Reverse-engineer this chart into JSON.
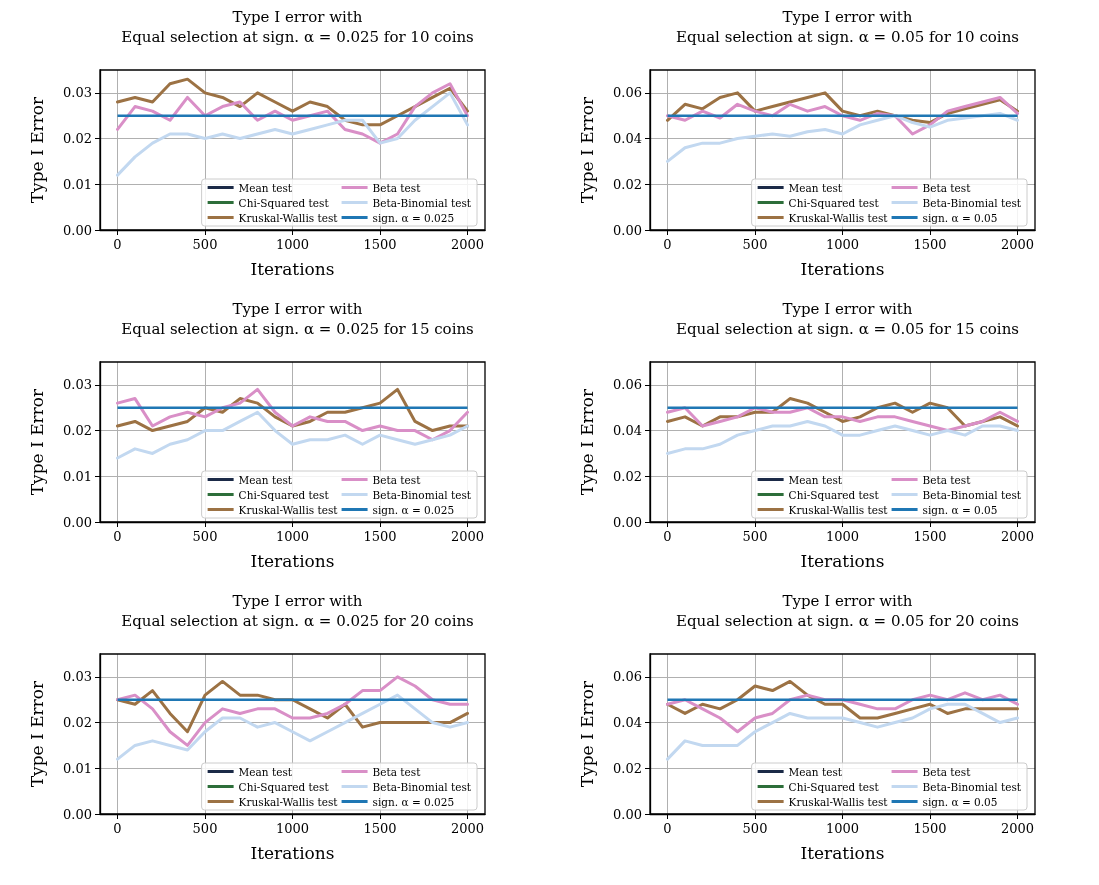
{
  "chart_data": [
    {
      "type": "line",
      "title": "Type I error with\nEqual selection at sign. α = 0.025 for 10 coins",
      "xlabel": "Iterations",
      "ylabel": "Type I Error",
      "xlim": [
        -100,
        2100
      ],
      "xticks": [
        0,
        500,
        1000,
        1500,
        2000
      ],
      "ylim": [
        0,
        0.035
      ],
      "yticks": [
        {
          "value": 0,
          "label": "0.00"
        },
        {
          "value": 0.01,
          "label": "0.01"
        },
        {
          "value": 0.02,
          "label": "0.02"
        },
        {
          "value": 0.03,
          "label": "0.03"
        }
      ],
      "grid": true,
      "legend": "bottom",
      "line_style": "solid",
      "marker": "none",
      "x": [
        0,
        100,
        200,
        300,
        400,
        500,
        600,
        700,
        800,
        900,
        1000,
        1100,
        1200,
        1300,
        1400,
        1500,
        1600,
        1700,
        1800,
        1900,
        2000
      ],
      "series": [
        {
          "name": "Mean test",
          "color": "#1b2a47",
          "values": [
            null,
            null,
            null,
            null,
            null,
            null,
            null,
            null,
            null,
            null,
            null,
            null,
            null,
            null,
            null,
            null,
            null,
            null,
            null,
            null,
            null
          ]
        },
        {
          "name": "Chi-Squared test",
          "color": "#2d6e3a",
          "values": [
            null,
            null,
            null,
            null,
            null,
            null,
            null,
            null,
            null,
            null,
            null,
            null,
            null,
            null,
            null,
            null,
            null,
            null,
            null,
            null,
            null
          ]
        },
        {
          "name": "Kruskal-Wallis test",
          "color": "#9c7244",
          "values": [
            0.028,
            0.029,
            0.028,
            0.032,
            0.033,
            0.03,
            0.029,
            0.027,
            0.03,
            0.028,
            0.026,
            0.028,
            0.027,
            0.024,
            0.023,
            0.023,
            0.025,
            0.027,
            0.029,
            0.031,
            0.026
          ]
        },
        {
          "name": "Beta test",
          "color": "#d98fc7",
          "values": [
            0.022,
            0.027,
            0.026,
            0.024,
            0.029,
            0.025,
            0.027,
            0.028,
            0.024,
            0.026,
            0.024,
            0.025,
            0.026,
            0.022,
            0.021,
            0.019,
            0.021,
            0.027,
            0.03,
            0.032,
            0.025
          ]
        },
        {
          "name": "Beta-Binomial test",
          "color": "#c2d8f0",
          "values": [
            0.012,
            0.016,
            0.019,
            0.021,
            0.021,
            0.02,
            0.021,
            0.02,
            0.021,
            0.022,
            0.021,
            0.022,
            0.023,
            0.024,
            0.024,
            0.019,
            0.02,
            0.024,
            0.027,
            0.03,
            0.023
          ]
        }
      ],
      "ref_lines": [
        {
          "axis": "y",
          "value": 0.025,
          "label": "sign. α = 0.025",
          "color": "#1f77b4"
        }
      ]
    },
    {
      "type": "line",
      "title": "Type I error with\nEqual selection at sign. α = 0.05 for 10 coins",
      "xlabel": "Iterations",
      "ylabel": "Type I Error",
      "xlim": [
        -100,
        2100
      ],
      "xticks": [
        0,
        500,
        1000,
        1500,
        2000
      ],
      "ylim": [
        0,
        0.07
      ],
      "yticks": [
        {
          "value": 0,
          "label": "0.00"
        },
        {
          "value": 0.02,
          "label": "0.02"
        },
        {
          "value": 0.04,
          "label": "0.04"
        },
        {
          "value": 0.06,
          "label": "0.06"
        }
      ],
      "grid": true,
      "legend": "bottom",
      "line_style": "solid",
      "marker": "none",
      "x": [
        0,
        100,
        200,
        300,
        400,
        500,
        600,
        700,
        800,
        900,
        1000,
        1100,
        1200,
        1300,
        1400,
        1500,
        1600,
        1700,
        1800,
        1900,
        2000
      ],
      "series": [
        {
          "name": "Mean test",
          "color": "#1b2a47",
          "values": [
            null,
            null,
            null,
            null,
            null,
            null,
            null,
            null,
            null,
            null,
            null,
            null,
            null,
            null,
            null,
            null,
            null,
            null,
            null,
            null,
            null
          ]
        },
        {
          "name": "Chi-Squared test",
          "color": "#2d6e3a",
          "values": [
            null,
            null,
            null,
            null,
            null,
            null,
            null,
            null,
            null,
            null,
            null,
            null,
            null,
            null,
            null,
            null,
            null,
            null,
            null,
            null,
            null
          ]
        },
        {
          "name": "Kruskal-Wallis test",
          "color": "#9c7244",
          "values": [
            0.048,
            0.055,
            0.053,
            0.058,
            0.06,
            0.052,
            0.054,
            0.056,
            0.058,
            0.06,
            0.052,
            0.05,
            0.052,
            0.05,
            0.048,
            0.047,
            0.051,
            0.053,
            0.055,
            0.057,
            0.052
          ]
        },
        {
          "name": "Beta test",
          "color": "#d98fc7",
          "values": [
            0.05,
            0.048,
            0.052,
            0.049,
            0.055,
            0.052,
            0.05,
            0.055,
            0.052,
            0.054,
            0.05,
            0.048,
            0.051,
            0.05,
            0.042,
            0.046,
            0.052,
            0.054,
            0.056,
            0.058,
            0.051
          ]
        },
        {
          "name": "Beta-Binomial test",
          "color": "#c2d8f0",
          "values": [
            0.03,
            0.036,
            0.038,
            0.038,
            0.04,
            0.041,
            0.042,
            0.041,
            0.043,
            0.044,
            0.042,
            0.046,
            0.048,
            0.05,
            0.047,
            0.045,
            0.048,
            0.049,
            0.05,
            0.051,
            0.048
          ]
        }
      ],
      "ref_lines": [
        {
          "axis": "y",
          "value": 0.05,
          "label": "sign. α = 0.05",
          "color": "#1f77b4"
        }
      ]
    },
    {
      "type": "line",
      "title": "Type I error with\nEqual selection at sign. α = 0.025 for 15 coins",
      "xlabel": "Iterations",
      "ylabel": "Type I Error",
      "xlim": [
        -100,
        2100
      ],
      "xticks": [
        0,
        500,
        1000,
        1500,
        2000
      ],
      "ylim": [
        0,
        0.035
      ],
      "yticks": [
        {
          "value": 0,
          "label": "0.00"
        },
        {
          "value": 0.01,
          "label": "0.01"
        },
        {
          "value": 0.02,
          "label": "0.02"
        },
        {
          "value": 0.03,
          "label": "0.03"
        }
      ],
      "grid": true,
      "legend": "bottom",
      "line_style": "solid",
      "marker": "none",
      "x": [
        0,
        100,
        200,
        300,
        400,
        500,
        600,
        700,
        800,
        900,
        1000,
        1100,
        1200,
        1300,
        1400,
        1500,
        1600,
        1700,
        1800,
        1900,
        2000
      ],
      "series": [
        {
          "name": "Mean test",
          "color": "#1b2a47",
          "values": [
            null,
            null,
            null,
            null,
            null,
            null,
            null,
            null,
            null,
            null,
            null,
            null,
            null,
            null,
            null,
            null,
            null,
            null,
            null,
            null,
            null
          ]
        },
        {
          "name": "Chi-Squared test",
          "color": "#2d6e3a",
          "values": [
            null,
            null,
            null,
            null,
            null,
            null,
            null,
            null,
            null,
            null,
            null,
            null,
            null,
            null,
            null,
            null,
            null,
            null,
            null,
            null,
            null
          ]
        },
        {
          "name": "Kruskal-Wallis test",
          "color": "#9c7244",
          "values": [
            0.021,
            0.022,
            0.02,
            0.021,
            0.022,
            0.025,
            0.024,
            0.027,
            0.026,
            0.023,
            0.021,
            0.022,
            0.024,
            0.024,
            0.025,
            0.026,
            0.029,
            0.022,
            0.02,
            0.021,
            0.021
          ]
        },
        {
          "name": "Beta test",
          "color": "#d98fc7",
          "values": [
            0.026,
            0.027,
            0.021,
            0.023,
            0.024,
            0.023,
            0.025,
            0.026,
            0.029,
            0.024,
            0.021,
            0.023,
            0.022,
            0.022,
            0.02,
            0.021,
            0.02,
            0.02,
            0.018,
            0.02,
            0.024
          ]
        },
        {
          "name": "Beta-Binomial test",
          "color": "#c2d8f0",
          "values": [
            0.014,
            0.016,
            0.015,
            0.017,
            0.018,
            0.02,
            0.02,
            0.022,
            0.024,
            0.02,
            0.017,
            0.018,
            0.018,
            0.019,
            0.017,
            0.019,
            0.018,
            0.017,
            0.018,
            0.019,
            0.021
          ]
        }
      ],
      "ref_lines": [
        {
          "axis": "y",
          "value": 0.025,
          "label": "sign. α = 0.025",
          "color": "#1f77b4"
        }
      ]
    },
    {
      "type": "line",
      "title": "Type I error with\nEqual selection at sign. α = 0.05 for 15 coins",
      "xlabel": "Iterations",
      "ylabel": "Type I Error",
      "xlim": [
        -100,
        2100
      ],
      "xticks": [
        0,
        500,
        1000,
        1500,
        2000
      ],
      "ylim": [
        0,
        0.07
      ],
      "yticks": [
        {
          "value": 0,
          "label": "0.00"
        },
        {
          "value": 0.02,
          "label": "0.02"
        },
        {
          "value": 0.04,
          "label": "0.04"
        },
        {
          "value": 0.06,
          "label": "0.06"
        }
      ],
      "grid": true,
      "legend": "bottom",
      "line_style": "solid",
      "marker": "none",
      "x": [
        0,
        100,
        200,
        300,
        400,
        500,
        600,
        700,
        800,
        900,
        1000,
        1100,
        1200,
        1300,
        1400,
        1500,
        1600,
        1700,
        1800,
        1900,
        2000
      ],
      "series": [
        {
          "name": "Mean test",
          "color": "#1b2a47",
          "values": [
            null,
            null,
            null,
            null,
            null,
            null,
            null,
            null,
            null,
            null,
            null,
            null,
            null,
            null,
            null,
            null,
            null,
            null,
            null,
            null,
            null
          ]
        },
        {
          "name": "Chi-Squared test",
          "color": "#2d6e3a",
          "values": [
            null,
            null,
            null,
            null,
            null,
            null,
            null,
            null,
            null,
            null,
            null,
            null,
            null,
            null,
            null,
            null,
            null,
            null,
            null,
            null,
            null
          ]
        },
        {
          "name": "Kruskal-Wallis test",
          "color": "#9c7244",
          "values": [
            0.044,
            0.046,
            0.042,
            0.046,
            0.046,
            0.048,
            0.048,
            0.054,
            0.052,
            0.048,
            0.044,
            0.046,
            0.05,
            0.052,
            0.048,
            0.052,
            0.05,
            0.042,
            0.044,
            0.046,
            0.042
          ]
        },
        {
          "name": "Beta test",
          "color": "#d98fc7",
          "values": [
            0.048,
            0.05,
            0.042,
            0.044,
            0.046,
            0.05,
            0.048,
            0.048,
            0.05,
            0.046,
            0.046,
            0.044,
            0.046,
            0.046,
            0.044,
            0.042,
            0.04,
            0.042,
            0.044,
            0.048,
            0.044
          ]
        },
        {
          "name": "Beta-Binomial test",
          "color": "#c2d8f0",
          "values": [
            0.03,
            0.032,
            0.032,
            0.034,
            0.038,
            0.04,
            0.042,
            0.042,
            0.044,
            0.042,
            0.038,
            0.038,
            0.04,
            0.042,
            0.04,
            0.038,
            0.04,
            0.038,
            0.042,
            0.042,
            0.04
          ]
        }
      ],
      "ref_lines": [
        {
          "axis": "y",
          "value": 0.05,
          "label": "sign. α = 0.05",
          "color": "#1f77b4"
        }
      ]
    },
    {
      "type": "line",
      "title": "Type I error with\nEqual selection at sign. α = 0.025 for 20 coins",
      "xlabel": "Iterations",
      "ylabel": "Type I Error",
      "xlim": [
        -100,
        2100
      ],
      "xticks": [
        0,
        500,
        1000,
        1500,
        2000
      ],
      "ylim": [
        0,
        0.035
      ],
      "yticks": [
        {
          "value": 0,
          "label": "0.00"
        },
        {
          "value": 0.01,
          "label": "0.01"
        },
        {
          "value": 0.02,
          "label": "0.02"
        },
        {
          "value": 0.03,
          "label": "0.03"
        }
      ],
      "grid": true,
      "legend": "bottom",
      "line_style": "solid",
      "marker": "none",
      "x": [
        0,
        100,
        200,
        300,
        400,
        500,
        600,
        700,
        800,
        900,
        1000,
        1100,
        1200,
        1300,
        1400,
        1500,
        1600,
        1700,
        1800,
        1900,
        2000
      ],
      "series": [
        {
          "name": "Mean test",
          "color": "#1b2a47",
          "values": [
            null,
            null,
            null,
            null,
            null,
            null,
            null,
            null,
            null,
            null,
            null,
            null,
            null,
            null,
            null,
            null,
            null,
            null,
            null,
            null,
            null
          ]
        },
        {
          "name": "Chi-Squared test",
          "color": "#2d6e3a",
          "values": [
            null,
            null,
            null,
            null,
            null,
            null,
            null,
            null,
            null,
            null,
            null,
            null,
            null,
            null,
            null,
            null,
            null,
            null,
            null,
            null,
            null
          ]
        },
        {
          "name": "Kruskal-Wallis test",
          "color": "#9c7244",
          "values": [
            0.025,
            0.024,
            0.027,
            0.022,
            0.018,
            0.026,
            0.029,
            0.026,
            0.026,
            0.025,
            0.025,
            0.023,
            0.021,
            0.024,
            0.019,
            0.02,
            0.02,
            0.02,
            0.02,
            0.02,
            0.022
          ]
        },
        {
          "name": "Beta test",
          "color": "#d98fc7",
          "values": [
            0.025,
            0.026,
            0.023,
            0.018,
            0.015,
            0.02,
            0.023,
            0.022,
            0.023,
            0.023,
            0.021,
            0.021,
            0.022,
            0.024,
            0.027,
            0.027,
            0.03,
            0.028,
            0.025,
            0.024,
            0.024
          ]
        },
        {
          "name": "Beta-Binomial test",
          "color": "#c2d8f0",
          "values": [
            0.012,
            0.015,
            0.016,
            0.015,
            0.014,
            0.018,
            0.021,
            0.021,
            0.019,
            0.02,
            0.018,
            0.016,
            0.018,
            0.02,
            0.022,
            0.024,
            0.026,
            0.023,
            0.02,
            0.019,
            0.02
          ]
        }
      ],
      "ref_lines": [
        {
          "axis": "y",
          "value": 0.025,
          "label": "sign. α = 0.025",
          "color": "#1f77b4"
        }
      ]
    },
    {
      "type": "line",
      "title": "Type I error with\nEqual selection at sign. α = 0.05 for 20 coins",
      "xlabel": "Iterations",
      "ylabel": "Type I Error",
      "xlim": [
        -100,
        2100
      ],
      "xticks": [
        0,
        500,
        1000,
        1500,
        2000
      ],
      "ylim": [
        0,
        0.07
      ],
      "yticks": [
        {
          "value": 0,
          "label": "0.00"
        },
        {
          "value": 0.02,
          "label": "0.02"
        },
        {
          "value": 0.04,
          "label": "0.04"
        },
        {
          "value": 0.06,
          "label": "0.06"
        }
      ],
      "grid": true,
      "legend": "bottom",
      "line_style": "solid",
      "marker": "none",
      "x": [
        0,
        100,
        200,
        300,
        400,
        500,
        600,
        700,
        800,
        900,
        1000,
        1100,
        1200,
        1300,
        1400,
        1500,
        1600,
        1700,
        1800,
        1900,
        2000
      ],
      "series": [
        {
          "name": "Mean test",
          "color": "#1b2a47",
          "values": [
            null,
            null,
            null,
            null,
            null,
            null,
            null,
            null,
            null,
            null,
            null,
            null,
            null,
            null,
            null,
            null,
            null,
            null,
            null,
            null,
            null
          ]
        },
        {
          "name": "Chi-Squared test",
          "color": "#2d6e3a",
          "values": [
            null,
            null,
            null,
            null,
            null,
            null,
            null,
            null,
            null,
            null,
            null,
            null,
            null,
            null,
            null,
            null,
            null,
            null,
            null,
            null,
            null
          ]
        },
        {
          "name": "Kruskal-Wallis test",
          "color": "#9c7244",
          "values": [
            0.048,
            0.044,
            0.048,
            0.046,
            0.05,
            0.056,
            0.054,
            0.058,
            0.052,
            0.048,
            0.048,
            0.042,
            0.042,
            0.044,
            0.046,
            0.048,
            0.044,
            0.046,
            0.046,
            0.046,
            0.046
          ]
        },
        {
          "name": "Beta test",
          "color": "#d98fc7",
          "values": [
            0.048,
            0.05,
            0.046,
            0.042,
            0.036,
            0.042,
            0.044,
            0.05,
            0.052,
            0.05,
            0.05,
            0.048,
            0.046,
            0.046,
            0.05,
            0.052,
            0.05,
            0.053,
            0.05,
            0.052,
            0.048
          ]
        },
        {
          "name": "Beta-Binomial test",
          "color": "#c2d8f0",
          "values": [
            0.024,
            0.032,
            0.03,
            0.03,
            0.03,
            0.036,
            0.04,
            0.044,
            0.042,
            0.042,
            0.042,
            0.04,
            0.038,
            0.04,
            0.042,
            0.046,
            0.048,
            0.048,
            0.044,
            0.04,
            0.042
          ]
        }
      ],
      "ref_lines": [
        {
          "axis": "y",
          "value": 0.05,
          "label": "sign. α = 0.05",
          "color": "#1f77b4"
        }
      ]
    }
  ]
}
